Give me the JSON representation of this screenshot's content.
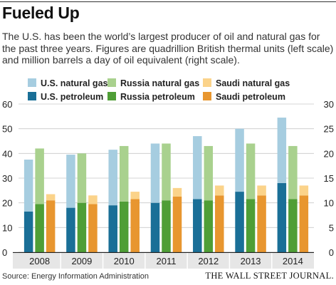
{
  "header": {
    "title": "Fueled Up",
    "subtitle": "The U.S. has been the world’s largest producer of oil and natural gas for the past three years. Figures are quadrillion British thermal units (left scale) and million barrels a day of oil equivalent (right scale)."
  },
  "legend": [
    {
      "label": "U.S. natural gas",
      "color": "#a6cde0"
    },
    {
      "label": "Russia natural gas",
      "color": "#a9d18e"
    },
    {
      "label": "Saudi natural gas",
      "color": "#fbd38a"
    },
    {
      "label": "U.S. petroleum",
      "color": "#1a6f97"
    },
    {
      "label": "Russia petroleum",
      "color": "#4f9e36"
    },
    {
      "label": "Saudi petroleum",
      "color": "#e8962f"
    }
  ],
  "chart_data": {
    "type": "bar",
    "stacked": true,
    "categories": [
      "2008",
      "2009",
      "2010",
      "2011",
      "2012",
      "2013",
      "2014"
    ],
    "groups": [
      {
        "country": "U.S.",
        "petroleum_color": "#1a6f97",
        "gas_color": "#a6cde0",
        "petroleum": [
          16.5,
          18,
          19,
          20,
          21.5,
          24.5,
          28
        ],
        "natural_gas": [
          21,
          21.5,
          22.5,
          24,
          25.5,
          25.5,
          26.5
        ],
        "total": [
          37.5,
          39.5,
          41.5,
          44,
          47,
          50,
          54.5
        ]
      },
      {
        "country": "Russia",
        "petroleum_color": "#4f9e36",
        "gas_color": "#a9d18e",
        "petroleum": [
          19.5,
          20,
          20.5,
          21,
          21,
          21.5,
          21.5
        ],
        "natural_gas": [
          22.5,
          20,
          22.5,
          23,
          22,
          22.5,
          21.5
        ],
        "total": [
          42,
          40,
          43,
          44,
          43,
          44,
          43
        ]
      },
      {
        "country": "Saudi",
        "petroleum_color": "#e8962f",
        "gas_color": "#fbd38a",
        "petroleum": [
          21,
          19.5,
          21.5,
          22.5,
          23,
          23,
          23
        ],
        "natural_gas": [
          2.5,
          3.5,
          3,
          3.5,
          4,
          4,
          4
        ],
        "total": [
          23.5,
          23,
          24.5,
          26,
          27,
          27,
          27
        ]
      }
    ],
    "left_axis": {
      "ticks": [
        "0",
        "10",
        "20",
        "30",
        "40",
        "50",
        "60"
      ],
      "ylim": [
        0,
        60
      ]
    },
    "right_axis": {
      "ticks": [
        "0",
        "5",
        "10",
        "15",
        "20",
        "25",
        "30"
      ],
      "ylim": [
        0,
        30
      ]
    },
    "grid": true,
    "legend_position": "top"
  },
  "footer": {
    "source": "Source: Energy Information Administration",
    "brand": "THE WALL STREET JOURNAL."
  }
}
